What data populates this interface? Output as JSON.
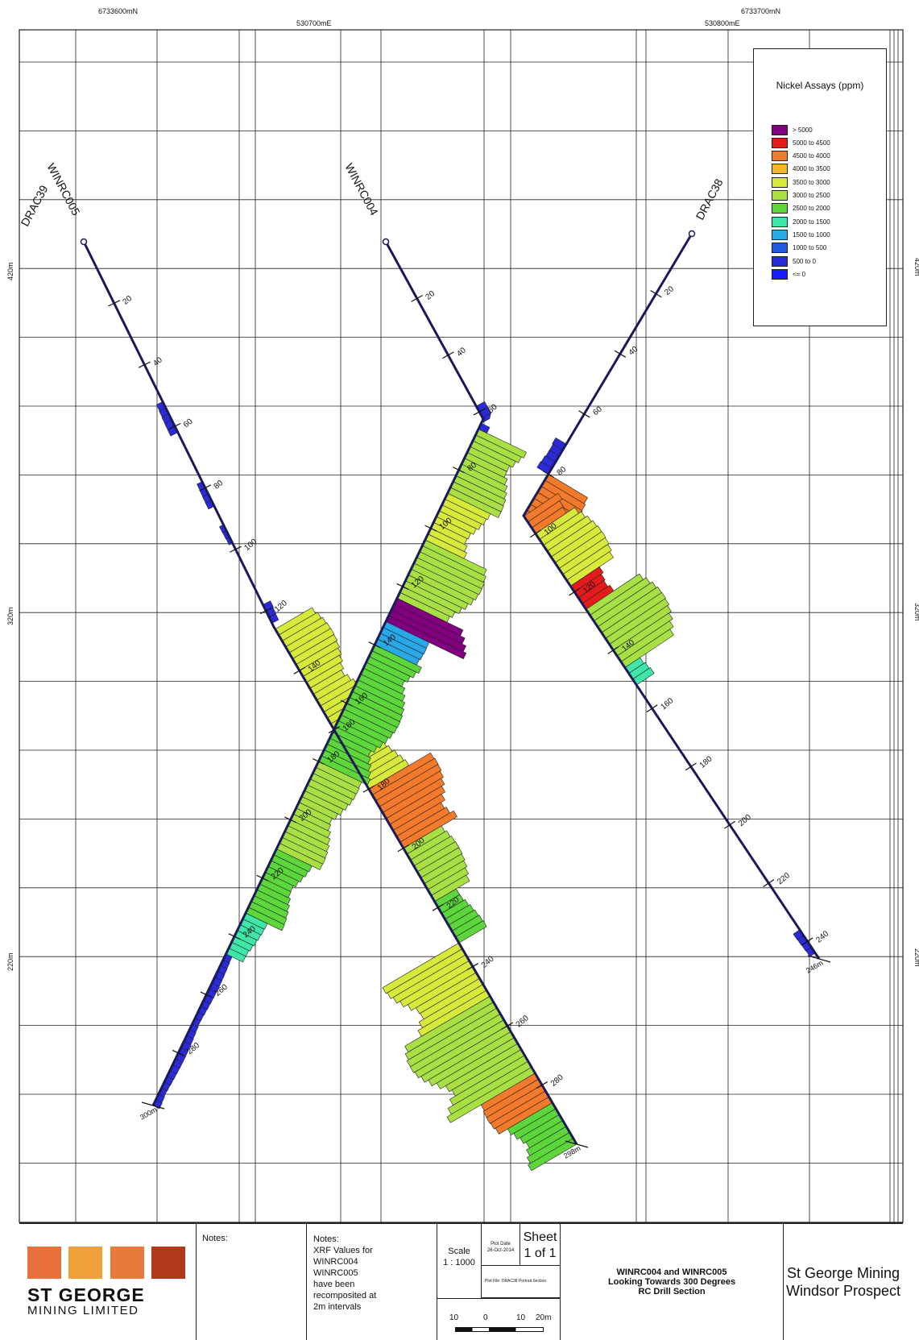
{
  "grid": {
    "northings": [
      {
        "label": "6733600mN"
      },
      {
        "label": "6733700mN"
      }
    ],
    "eastings": [
      {
        "label": "530700mE"
      },
      {
        "label": "530800mE"
      }
    ],
    "elevations": [
      {
        "label": "420m"
      },
      {
        "label": "320m"
      },
      {
        "label": "220m"
      }
    ]
  },
  "holes": [
    {
      "name": "DRAC39",
      "labels": [],
      "end_label": ""
    },
    {
      "name": "WINRC005",
      "labels": [
        "20",
        "40",
        "60",
        "80",
        "100",
        "120",
        "140",
        "160",
        "180",
        "200",
        "220",
        "240",
        "260",
        "280"
      ],
      "end_label": "298m"
    },
    {
      "name": "WINRC004",
      "labels": [
        "20",
        "40",
        "60",
        "80",
        "100",
        "120",
        "140",
        "160",
        "180",
        "200",
        "220",
        "240",
        "260",
        "280",
        "300"
      ],
      "end_label": "300m"
    },
    {
      "name": "DRAC38",
      "labels": [
        "20",
        "40",
        "60",
        "80",
        "100",
        "120",
        "140",
        "160",
        "180",
        "200",
        "220",
        "240"
      ],
      "end_label": "246m"
    }
  ],
  "legend": {
    "title": "Nickel Assays (ppm)",
    "items": [
      {
        "label": "> 5000",
        "color": "#800080"
      },
      {
        "label": "5000 to 4500",
        "color": "#e51b1b"
      },
      {
        "label": "4500 to 4000",
        "color": "#f27a2a"
      },
      {
        "label": "4000 to 3500",
        "color": "#f5b42a"
      },
      {
        "label": "3500 to 3000",
        "color": "#d7ea3a"
      },
      {
        "label": "3000 to 2500",
        "color": "#a8e044"
      },
      {
        "label": "2500 to 2000",
        "color": "#5cd63a"
      },
      {
        "label": "2000 to 1500",
        "color": "#3ee6a8"
      },
      {
        "label": "1500 to 1000",
        "color": "#29a8e8"
      },
      {
        "label": "1000 to 500",
        "color": "#1f5be0"
      },
      {
        "label": "500 to 0",
        "color": "#2a2ad8"
      },
      {
        "label": "<= 0",
        "color": "#1a1aff"
      }
    ]
  },
  "titleblock": {
    "logo_line1": "ST GEORGE",
    "logo_line2": "MINING LIMITED",
    "notes1_label": "Notes:",
    "notes2_label": "Notes:",
    "notes2_lines": [
      "XRF Values for",
      "WINRC004",
      "WINRC005",
      "have been",
      "recomposited at",
      "2m intervals"
    ],
    "scale_label": "Scale",
    "scale_value": "1 : 1000",
    "plot_date_label": "Plot Date",
    "plot_date": "26-Oct-2014",
    "sheet_label": "Sheet",
    "sheet_value": "1 of 1",
    "plot_file": "Plot File: DRAC38 Portrait Section",
    "scalebar_labels": [
      "10",
      "0",
      "10",
      "20m"
    ],
    "section_title": [
      "WINRC004 and WINRC005",
      "Looking Towards 300 Degrees",
      "RC Drill Section"
    ],
    "company": "St George Mining",
    "project": "Windsor Prospect"
  },
  "colors": {
    "hole_trace": "#1a1a5a",
    "grid": "#222222",
    "logo_tiles": [
      "#e8703a",
      "#f0a03a",
      "#e87a3a",
      "#b03a1a"
    ]
  }
}
